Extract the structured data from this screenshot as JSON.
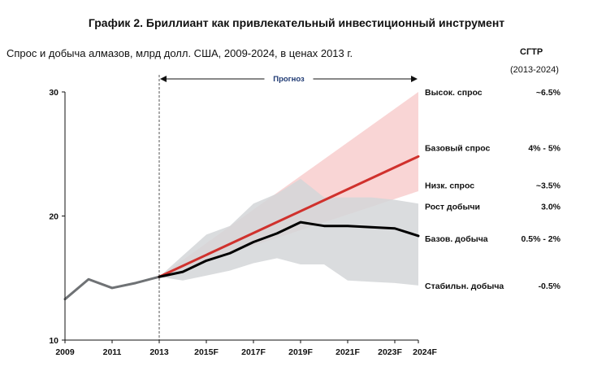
{
  "title": "График 2. Бриллиант как привлекательный инвестиционный инструмент",
  "subtitle": "Спрос и добыча алмазов, млрд  долл. США, 2009-2024, в ценах 2013 г.",
  "cagr_header": "СГТР",
  "cagr_period": "(2013-2024)",
  "forecast_label": "Прогноз",
  "chart_data": {
    "type": "line",
    "title": "Спрос и добыча алмазов, млрд  долл. США, 2009-2024, в ценах 2013 г.",
    "xlabel": "",
    "ylabel": "",
    "ylim": [
      10,
      30
    ],
    "xlim": [
      2009,
      2024
    ],
    "yticks": [
      10,
      20,
      30
    ],
    "x_ticks": [
      {
        "x": 2009,
        "label": "2009"
      },
      {
        "x": 2011,
        "label": "2011"
      },
      {
        "x": 2013,
        "label": "2013"
      },
      {
        "x": 2015,
        "label": "2015F"
      },
      {
        "x": 2017,
        "label": "2017F"
      },
      {
        "x": 2019,
        "label": "2019F"
      },
      {
        "x": 2021,
        "label": "2021F"
      },
      {
        "x": 2023,
        "label": "2023F"
      },
      {
        "x": 2024,
        "label": "2024F"
      }
    ],
    "forecast_start": 2013,
    "series": [
      {
        "name": "Исторические данные",
        "color": "#6f7275",
        "x": [
          2009,
          2010,
          2011,
          2012,
          2013
        ],
        "values": [
          13.3,
          14.9,
          14.2,
          14.6,
          15.1
        ]
      },
      {
        "name": "Базовый спрос",
        "color": "#d0312d",
        "x": [
          2013,
          2024
        ],
        "values": [
          15.1,
          24.8
        ]
      },
      {
        "name": "Базов. добыча",
        "color": "#000000",
        "x": [
          2013,
          2014,
          2015,
          2016,
          2017,
          2018,
          2019,
          2020,
          2021,
          2022,
          2023,
          2024
        ],
        "values": [
          15.1,
          15.5,
          16.4,
          17.0,
          17.9,
          18.6,
          19.5,
          19.2,
          19.2,
          19.1,
          19.0,
          18.4
        ]
      }
    ],
    "bands": [
      {
        "name": "Диапазон спроса",
        "color": "#f7c7c7",
        "x": [
          2013,
          2024
        ],
        "upper": [
          15.1,
          30.0
        ],
        "lower": [
          15.1,
          22.0
        ]
      },
      {
        "name": "Диапазон добычи",
        "color": "#d3d6d8",
        "x": [
          2013,
          2014,
          2015,
          2016,
          2017,
          2018,
          2019,
          2020,
          2021,
          2022,
          2023,
          2024
        ],
        "upper": [
          15.1,
          16.8,
          18.5,
          19.2,
          21.0,
          21.8,
          23.0,
          21.5,
          21.5,
          21.5,
          21.3,
          21.0
        ],
        "lower": [
          15.1,
          14.8,
          15.2,
          15.6,
          16.2,
          16.6,
          16.1,
          16.1,
          14.8,
          14.7,
          14.6,
          14.4
        ]
      }
    ],
    "legend": [
      {
        "label": "Высок. спрос",
        "cagr": "~6.5%",
        "y": 30.0
      },
      {
        "label": "Базовый спрос",
        "cagr": "4% - 5%",
        "y": 25.5
      },
      {
        "label": "Низк. спрос",
        "cagr": "~3.5%",
        "y": 22.5
      },
      {
        "label": "Рост добычи",
        "cagr": "3.0%",
        "y": 20.8
      },
      {
        "label": "Базов. добыча",
        "cagr": "0.5% - 2%",
        "y": 18.2
      },
      {
        "label": "Стабильн. добыча",
        "cagr": "-0.5%",
        "y": 14.4
      }
    ]
  }
}
